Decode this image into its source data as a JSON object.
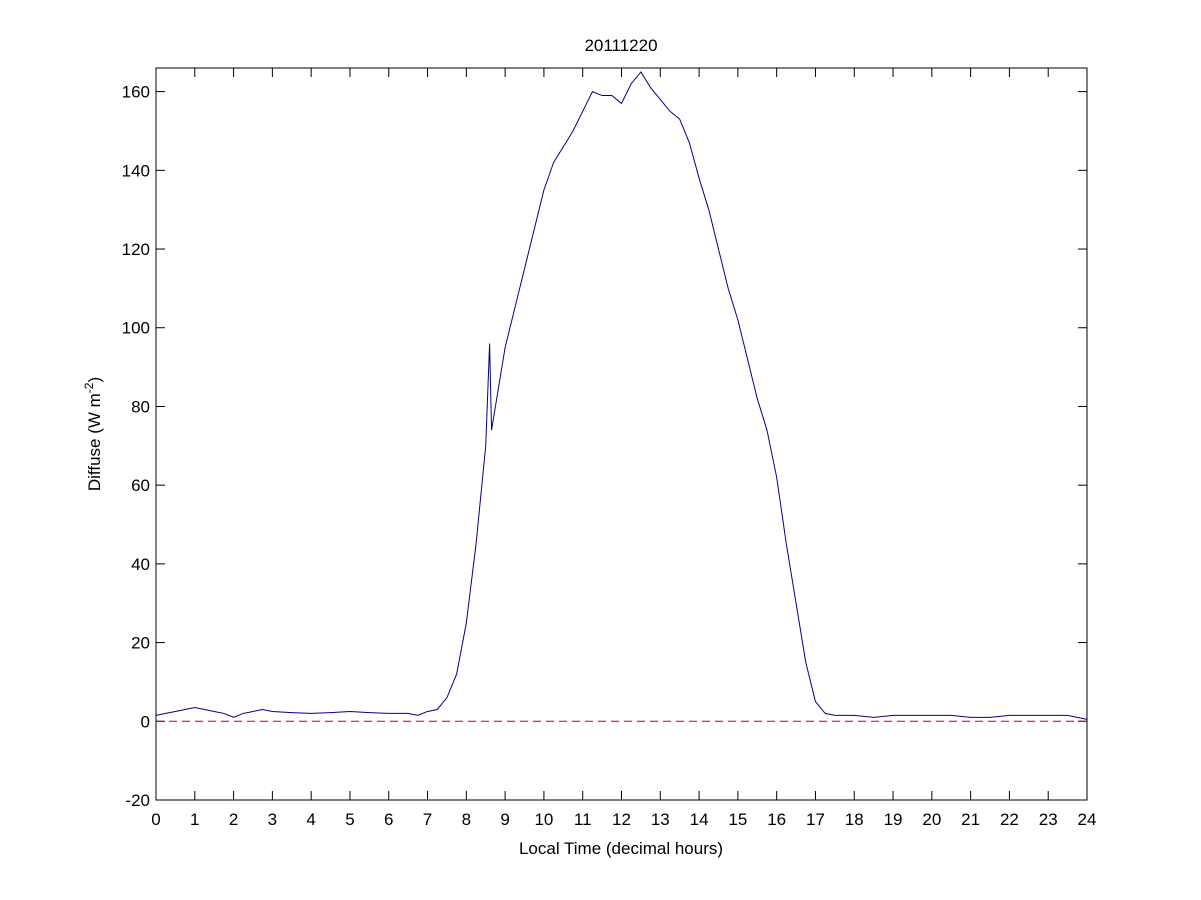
{
  "chart_data": {
    "type": "line",
    "title": "20111220",
    "xlabel": "Local Time (decimal hours)",
    "ylabel": [
      "Diffuse (W m",
      "-2",
      ")"
    ],
    "x": [
      0,
      0.25,
      0.5,
      0.75,
      1,
      1.25,
      1.5,
      1.75,
      2,
      2.25,
      2.5,
      2.75,
      3,
      3.5,
      4,
      4.5,
      5,
      5.5,
      6,
      6.5,
      6.75,
      7,
      7.25,
      7.5,
      7.75,
      8,
      8.25,
      8.5,
      8.6,
      8.65,
      8.75,
      9,
      9.25,
      9.5,
      9.75,
      10,
      10.25,
      10.5,
      10.75,
      11,
      11.25,
      11.5,
      11.75,
      12,
      12.25,
      12.5,
      12.75,
      13,
      13.25,
      13.5,
      13.75,
      14,
      14.25,
      14.5,
      14.75,
      15,
      15.25,
      15.5,
      15.75,
      16,
      16.25,
      16.5,
      16.75,
      17,
      17.25,
      17.5,
      18,
      18.5,
      19,
      19.5,
      20,
      20.5,
      21,
      21.5,
      22,
      22.5,
      23,
      23.5,
      24
    ],
    "series": [
      {
        "color": "#00008b",
        "values": [
          1.5,
          2,
          2.5,
          3,
          3.5,
          3,
          2.5,
          2,
          1,
          2,
          2.5,
          3,
          2.5,
          2.2,
          2,
          2.2,
          2.5,
          2.2,
          2,
          2,
          1.5,
          2.5,
          3,
          6,
          12,
          25,
          45,
          70,
          96,
          74,
          80,
          95,
          105,
          115,
          125,
          135,
          142,
          146,
          150,
          155,
          160,
          159,
          159,
          157,
          162,
          165,
          161,
          158,
          155,
          153,
          147,
          138,
          130,
          120,
          110,
          102,
          92,
          82,
          74,
          62,
          45,
          30,
          15,
          5,
          2,
          1.5,
          1.5,
          1,
          1.5,
          1.5,
          1.5,
          1.5,
          1,
          1,
          1.5,
          1.5,
          1.5,
          1.5,
          0.5
        ]
      }
    ],
    "reference_line": {
      "value": 0,
      "color": "#cc0000"
    },
    "xlim": [
      0,
      24
    ],
    "ylim": [
      -20,
      166
    ],
    "xticks": [
      0,
      1,
      2,
      3,
      4,
      5,
      6,
      7,
      8,
      9,
      10,
      11,
      12,
      13,
      14,
      15,
      16,
      17,
      18,
      19,
      20,
      21,
      22,
      23,
      24
    ],
    "yticks": [
      -20,
      0,
      20,
      40,
      60,
      80,
      100,
      120,
      140,
      160
    ]
  }
}
